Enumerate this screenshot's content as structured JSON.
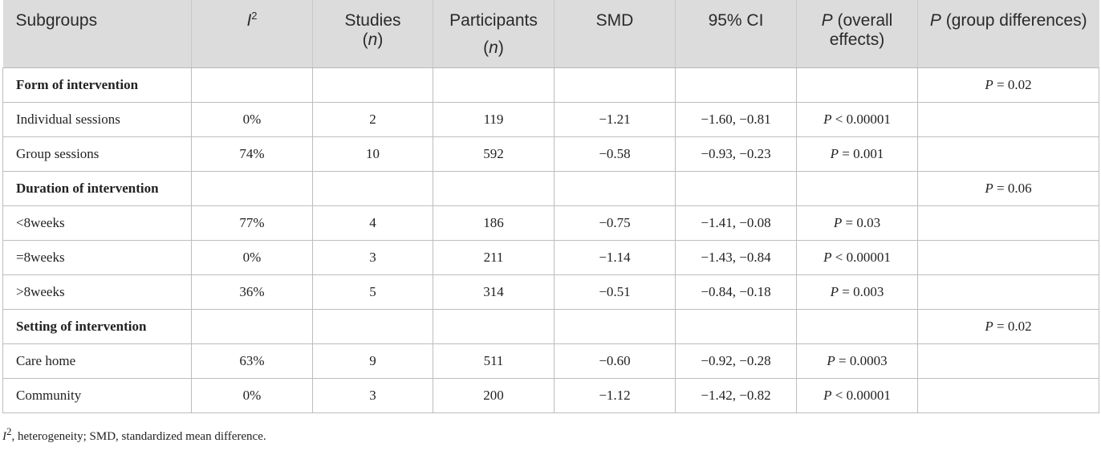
{
  "headers": {
    "subgroups": "Subgroups",
    "i2_main": "I",
    "i2_sup": "2",
    "studies": "Studies",
    "studies_n": "n",
    "participants": "Participants",
    "participants_n": "n",
    "smd": "SMD",
    "ci": "95% CI",
    "p_overall_p": "P",
    "p_overall_rest": " (overall effects)",
    "p_group_p": "P",
    "p_group_rest": " (group differences)"
  },
  "rows": [
    {
      "subgroup": "Form of intervention",
      "i2": "",
      "studies": "",
      "participants": "",
      "smd": "",
      "ci": "",
      "p_overall": "",
      "p_group": "P = 0.02"
    },
    {
      "subgroup": "Individual sessions",
      "i2": "0%",
      "studies": "2",
      "participants": "119",
      "smd": "−1.21",
      "ci": "−1.60, −0.81",
      "p_overall": "P < 0.00001",
      "p_group": ""
    },
    {
      "subgroup": "Group sessions",
      "i2": "74%",
      "studies": "10",
      "participants": "592",
      "smd": "−0.58",
      "ci": "−0.93, −0.23",
      "p_overall": "P = 0.001",
      "p_group": ""
    },
    {
      "subgroup": "Duration of intervention",
      "i2": "",
      "studies": "",
      "participants": "",
      "smd": "",
      "ci": "",
      "p_overall": "",
      "p_group": "P = 0.06"
    },
    {
      "subgroup": "<8weeks",
      "i2": "77%",
      "studies": "4",
      "participants": "186",
      "smd": "−0.75",
      "ci": "−1.41, −0.08",
      "p_overall": "P = 0.03",
      "p_group": ""
    },
    {
      "subgroup": "=8weeks",
      "i2": "0%",
      "studies": "3",
      "participants": "211",
      "smd": "−1.14",
      "ci": "−1.43, −0.84",
      "p_overall": "P < 0.00001",
      "p_group": ""
    },
    {
      "subgroup": ">8weeks",
      "i2": "36%",
      "studies": "5",
      "participants": "314",
      "smd": "−0.51",
      "ci": "−0.84, −0.18",
      "p_overall": "P = 0.003",
      "p_group": ""
    },
    {
      "subgroup": "Setting of intervention",
      "i2": "",
      "studies": "",
      "participants": "",
      "smd": "",
      "ci": "",
      "p_overall": "",
      "p_group": "P = 0.02"
    },
    {
      "subgroup": "Care home",
      "i2": "63%",
      "studies": "9",
      "participants": "511",
      "smd": "−0.60",
      "ci": "−0.92, −0.28",
      "p_overall": "P = 0.0003",
      "p_group": ""
    },
    {
      "subgroup": "Community",
      "i2": "0%",
      "studies": "3",
      "participants": "200",
      "smd": "−1.12",
      "ci": "−1.42, −0.82",
      "p_overall": "P < 0.00001",
      "p_group": ""
    }
  ],
  "footnote": {
    "i2_main": "I",
    "i2_sup": "2",
    "text": ", heterogeneity; SMD, standardized mean difference."
  }
}
